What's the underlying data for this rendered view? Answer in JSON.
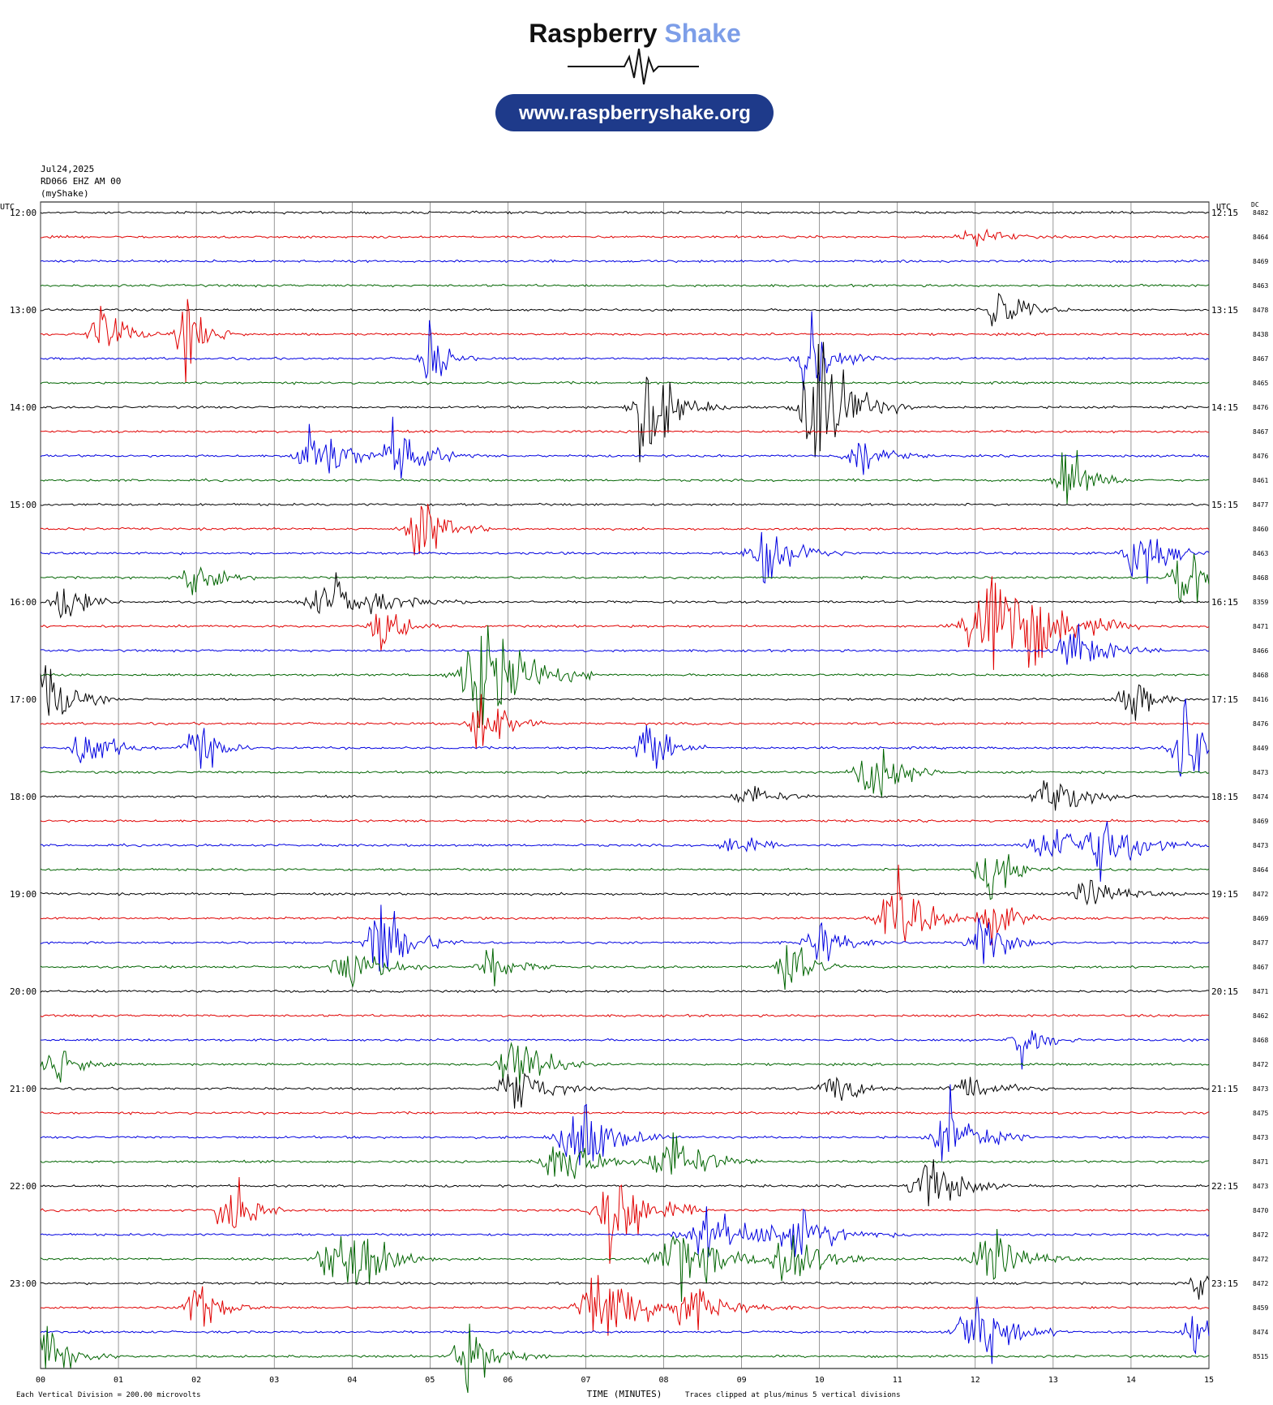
{
  "logo": {
    "brand_left": "Raspberry",
    "brand_right": "Shake",
    "url": "www.raspberryshake.org",
    "pill_color": "#1e3a8a",
    "brand_right_color": "#7d9ee8"
  },
  "header": {
    "date": "Jul24,2025",
    "station": "RD066 EHZ AM 00",
    "network": "(myShake)"
  },
  "chart_data": {
    "type": "seismogram",
    "left_axis_label": "UTC",
    "right_axis_label": "UTC",
    "dc_label": "DC",
    "x_axis_label": "TIME (MINUTES)",
    "x_ticks": [
      "00",
      "01",
      "02",
      "03",
      "04",
      "05",
      "06",
      "07",
      "08",
      "09",
      "10",
      "11",
      "12",
      "13",
      "14",
      "15"
    ],
    "xlim": [
      0,
      15
    ],
    "left_times": [
      "12:00",
      "13:00",
      "14:00",
      "15:00",
      "16:00",
      "17:00",
      "18:00",
      "19:00",
      "20:00",
      "21:00",
      "22:00",
      "23:00"
    ],
    "right_times": [
      "12:15",
      "13:15",
      "14:15",
      "15:15",
      "16:15",
      "17:15",
      "18:15",
      "19:15",
      "20:15",
      "21:15",
      "22:15",
      "23:15"
    ],
    "trace_colors": [
      "#000000",
      "#e00000",
      "#0000e0",
      "#006400"
    ],
    "dc_offsets": [
      "8482",
      "8464",
      "8469",
      "8463",
      "8478",
      "8438",
      "8467",
      "8465",
      "8476",
      "8467",
      "8476",
      "8461",
      "8477",
      "8460",
      "8463",
      "8468",
      "8359",
      "8471",
      "8466",
      "8468",
      "8416",
      "8476",
      "8449",
      "8473",
      "8474",
      "8469",
      "8473",
      "8464",
      "8472",
      "8469",
      "8477",
      "8467",
      "8471",
      "8462",
      "8468",
      "8472",
      "8473",
      "8475",
      "8473",
      "8471",
      "8473",
      "8470",
      "8472",
      "8472",
      "8472",
      "8459",
      "8474",
      "8515"
    ],
    "footer_left": "Each Vertical Division =  200.00 microvolts",
    "footer_right": "Traces clipped at plus/minus 5 vertical divisions"
  }
}
